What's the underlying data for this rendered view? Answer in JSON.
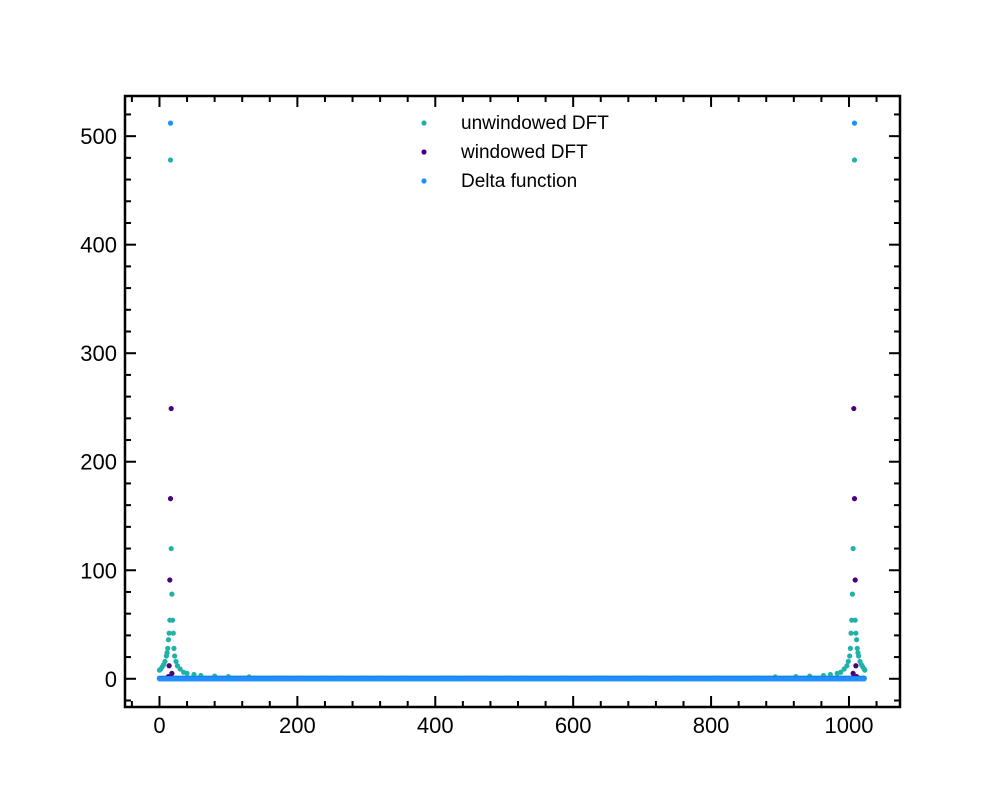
{
  "chart_data": {
    "type": "scatter",
    "title": "",
    "xlabel": "",
    "ylabel": "",
    "xlim": [
      -50,
      1074
    ],
    "ylim": [
      -26,
      537
    ],
    "xticks": [
      0,
      200,
      400,
      600,
      800,
      1000
    ],
    "yticks": [
      0,
      100,
      200,
      300,
      400,
      500
    ],
    "grid": false,
    "legend_position": "top-center",
    "series": [
      {
        "name": "unwindowed DFT",
        "color": "#20b2aa",
        "x_range": [
          0,
          1023
        ],
        "peak_bins": [
          16,
          1008
        ],
        "points": [
          [
            0,
            8
          ],
          [
            2,
            9
          ],
          [
            4,
            11
          ],
          [
            6,
            13
          ],
          [
            8,
            16
          ],
          [
            10,
            21
          ],
          [
            11,
            24
          ],
          [
            12,
            28
          ],
          [
            13,
            36
          ],
          [
            14,
            42
          ],
          [
            15,
            54
          ],
          [
            16,
            478
          ],
          [
            17,
            120
          ],
          [
            18,
            78
          ],
          [
            19,
            54
          ],
          [
            20,
            42
          ],
          [
            21,
            28
          ],
          [
            22,
            21
          ],
          [
            24,
            16
          ],
          [
            26,
            12
          ],
          [
            30,
            9
          ],
          [
            35,
            6
          ],
          [
            40,
            5
          ],
          [
            50,
            4
          ],
          [
            60,
            3
          ],
          [
            80,
            2.5
          ],
          [
            100,
            2
          ],
          [
            130,
            1.8
          ],
          [
            893,
            1.8
          ],
          [
            923,
            2
          ],
          [
            943,
            2.5
          ],
          [
            963,
            3
          ],
          [
            973,
            4
          ],
          [
            983,
            5
          ],
          [
            988,
            6
          ],
          [
            993,
            9
          ],
          [
            997,
            12
          ],
          [
            999,
            16
          ],
          [
            1001,
            21
          ],
          [
            1002,
            28
          ],
          [
            1003,
            42
          ],
          [
            1004,
            54
          ],
          [
            1005,
            78
          ],
          [
            1006,
            120
          ],
          [
            1008,
            478
          ],
          [
            1009,
            54
          ],
          [
            1010,
            42
          ],
          [
            1011,
            36
          ],
          [
            1012,
            28
          ],
          [
            1013,
            24
          ],
          [
            1014,
            21
          ],
          [
            1016,
            16
          ],
          [
            1018,
            13
          ],
          [
            1020,
            11
          ],
          [
            1022,
            9
          ],
          [
            1023,
            8
          ]
        ]
      },
      {
        "name": "windowed DFT",
        "color": "#4b0082",
        "x_range": [
          0,
          1023
        ],
        "points": [
          [
            13,
            2
          ],
          [
            14,
            12
          ],
          [
            15,
            91
          ],
          [
            16,
            166
          ],
          [
            17,
            249
          ],
          [
            18,
            5
          ],
          [
            1006,
            5
          ],
          [
            1007,
            249
          ],
          [
            1008,
            166
          ],
          [
            1009,
            91
          ],
          [
            1010,
            12
          ],
          [
            1011,
            2
          ]
        ]
      },
      {
        "name": "Delta function",
        "color": "#1e90ff",
        "x_range": [
          0,
          1023
        ],
        "points": [
          [
            16,
            512
          ],
          [
            1008,
            512
          ]
        ]
      }
    ]
  }
}
